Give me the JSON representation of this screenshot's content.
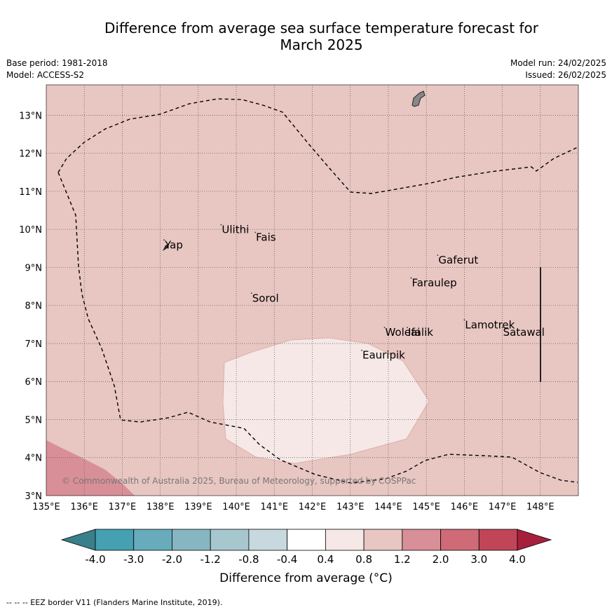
{
  "header": {
    "title_line1": "Difference from average sea surface temperature forecast for",
    "title_line2": "March 2025",
    "base_period": "Base period: 1981-2018",
    "model": "Model: ACCESS-S2",
    "model_run": "Model run: 24/02/2025",
    "issued": "Issued: 26/02/2025"
  },
  "map": {
    "lon_range": [
      135,
      149
    ],
    "lat_range": [
      3,
      13.8
    ],
    "lon_ticks": [
      "135°E",
      "136°E",
      "137°E",
      "138°E",
      "139°E",
      "140°E",
      "141°E",
      "142°E",
      "143°E",
      "144°E",
      "145°E",
      "146°E",
      "147°E",
      "148°E"
    ],
    "lat_ticks": [
      "3°N",
      "4°N",
      "5°N",
      "6°N",
      "7°N",
      "8°N",
      "9°N",
      "10°N",
      "11°N",
      "12°N",
      "13°N"
    ],
    "places": [
      {
        "name": "Ulithi",
        "lon": 139.6,
        "lat": 9.9
      },
      {
        "name": "Fais",
        "lon": 140.5,
        "lat": 9.7
      },
      {
        "name": "Yap",
        "lon": 138.1,
        "lat": 9.5
      },
      {
        "name": "Gaferut",
        "lon": 145.3,
        "lat": 9.1
      },
      {
        "name": "Faraulep",
        "lon": 144.6,
        "lat": 8.5
      },
      {
        "name": "Sorol",
        "lon": 140.4,
        "lat": 8.1
      },
      {
        "name": "Lamotrek",
        "lon": 146.0,
        "lat": 7.4
      },
      {
        "name": "Woleai",
        "lon": 143.9,
        "lat": 7.2
      },
      {
        "name": "Ifalik",
        "lon": 144.5,
        "lat": 7.2
      },
      {
        "name": "Satawal",
        "lon": 147.0,
        "lat": 7.2
      },
      {
        "name": "Eauripik",
        "lon": 143.3,
        "lat": 6.6
      }
    ],
    "copyright": "© Commonwealth of Australia 2025, Bureau of Meteorology, supported by COSPPac",
    "colors": {
      "background_class": "#e8c6c2",
      "light_class": "#f5e8e6",
      "warm_class": "#d98f97"
    }
  },
  "colorbar": {
    "tick_labels": [
      "-4.0",
      "-3.0",
      "-2.0",
      "-1.2",
      "-0.8",
      "-0.4",
      "0.4",
      "0.8",
      "1.2",
      "2.0",
      "3.0",
      "4.0"
    ],
    "colors": [
      "#3a7f8c",
      "#45a0b1",
      "#68acbb",
      "#87b6c3",
      "#a7c7cf",
      "#c7d9de",
      "#ffffff",
      "#f5e8e6",
      "#e8c6c2",
      "#d98f97",
      "#ce6b77",
      "#c04657",
      "#a81f3c"
    ],
    "label": "Difference from average (°C)"
  },
  "footer": "-- -- -- EEZ border V11 (Flanders Marine Institute, 2019)."
}
